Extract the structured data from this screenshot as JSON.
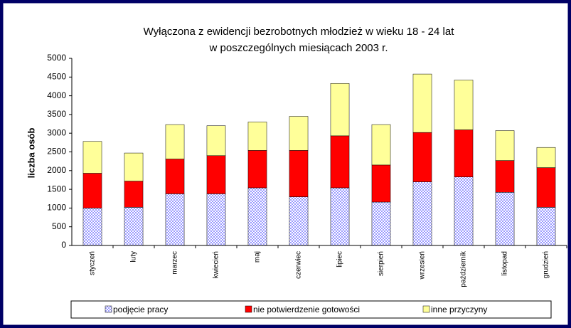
{
  "chart_data": {
    "type": "bar",
    "stacked": true,
    "title": [
      "Wyłączona z ewidencji bezrobotnych młodzież w wieku 18 - 24 lat",
      "w poszczególnych miesiącach 2003 r."
    ],
    "y_label": "liczba osób",
    "categories": [
      "styczeń",
      "luty",
      "marzec",
      "kwiecień",
      "maj",
      "czerwiec",
      "lipiec",
      "sierpień",
      "wrzesień",
      "październik",
      "listopad",
      "grudzień"
    ],
    "series": [
      {
        "name": "podjęcie pracy",
        "color": "#9999ff",
        "pattern": "checker",
        "values": [
          1000,
          1020,
          1380,
          1380,
          1540,
          1300,
          1540,
          1160,
          1700,
          1830,
          1420,
          1020
        ]
      },
      {
        "name": "nie potwierdzenie gotowości",
        "color": "#ff0000",
        "values": [
          930,
          700,
          930,
          1020,
          1000,
          1240,
          1390,
          990,
          1320,
          1260,
          850,
          1060
        ]
      },
      {
        "name": "inne przyczyny",
        "color": "#ffff99",
        "values": [
          850,
          750,
          920,
          800,
          760,
          910,
          1400,
          1080,
          1560,
          1330,
          800,
          540
        ]
      }
    ],
    "ylim": [
      0,
      5000
    ],
    "yticks": [
      0,
      500,
      1000,
      1500,
      2000,
      2500,
      3000,
      3500,
      4000,
      4500,
      5000
    ],
    "grid": false,
    "legend": "bottom"
  }
}
